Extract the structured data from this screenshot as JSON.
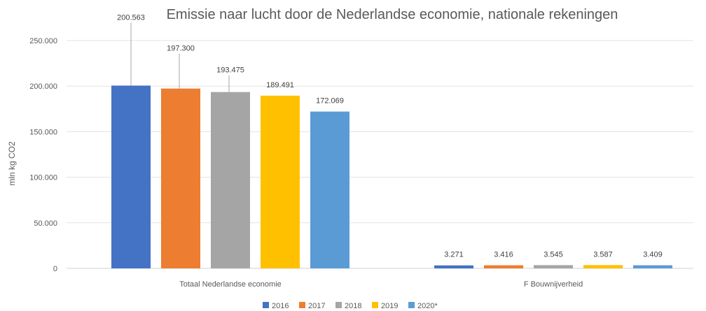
{
  "chart_data": {
    "type": "bar",
    "title": "Emissie naar lucht door de Nederlandse economie, nationale rekeningen",
    "ylabel": "mln kg CO2",
    "xlabel": "",
    "ylim": [
      0,
      250000
    ],
    "yticks": [
      0,
      50000,
      100000,
      150000,
      200000,
      250000
    ],
    "ytick_labels": [
      "0",
      "50.000",
      "100.000",
      "150.000",
      "200.000",
      "250.000"
    ],
    "grid": true,
    "legend_position": "bottom",
    "categories": [
      "Totaal Nederlandse economie",
      "F Bouwnijverheid"
    ],
    "series": [
      {
        "name": "2016",
        "color": "#4472C4",
        "values": [
          200563,
          3271
        ],
        "labels": [
          "200.563",
          "3.271"
        ]
      },
      {
        "name": "2017",
        "color": "#ED7D31",
        "values": [
          197300,
          3416
        ],
        "labels": [
          "197.300",
          "3.416"
        ]
      },
      {
        "name": "2018",
        "color": "#A5A5A5",
        "values": [
          193475,
          3545
        ],
        "labels": [
          "193.475",
          "3.545"
        ]
      },
      {
        "name": "2019",
        "color": "#FFC000",
        "values": [
          189491,
          3587
        ],
        "labels": [
          "189.491",
          "3.587"
        ]
      },
      {
        "name": "2020*",
        "color": "#5B9BD5",
        "values": [
          172069,
          3409
        ],
        "labels": [
          "172.069",
          "3.409"
        ]
      }
    ]
  }
}
